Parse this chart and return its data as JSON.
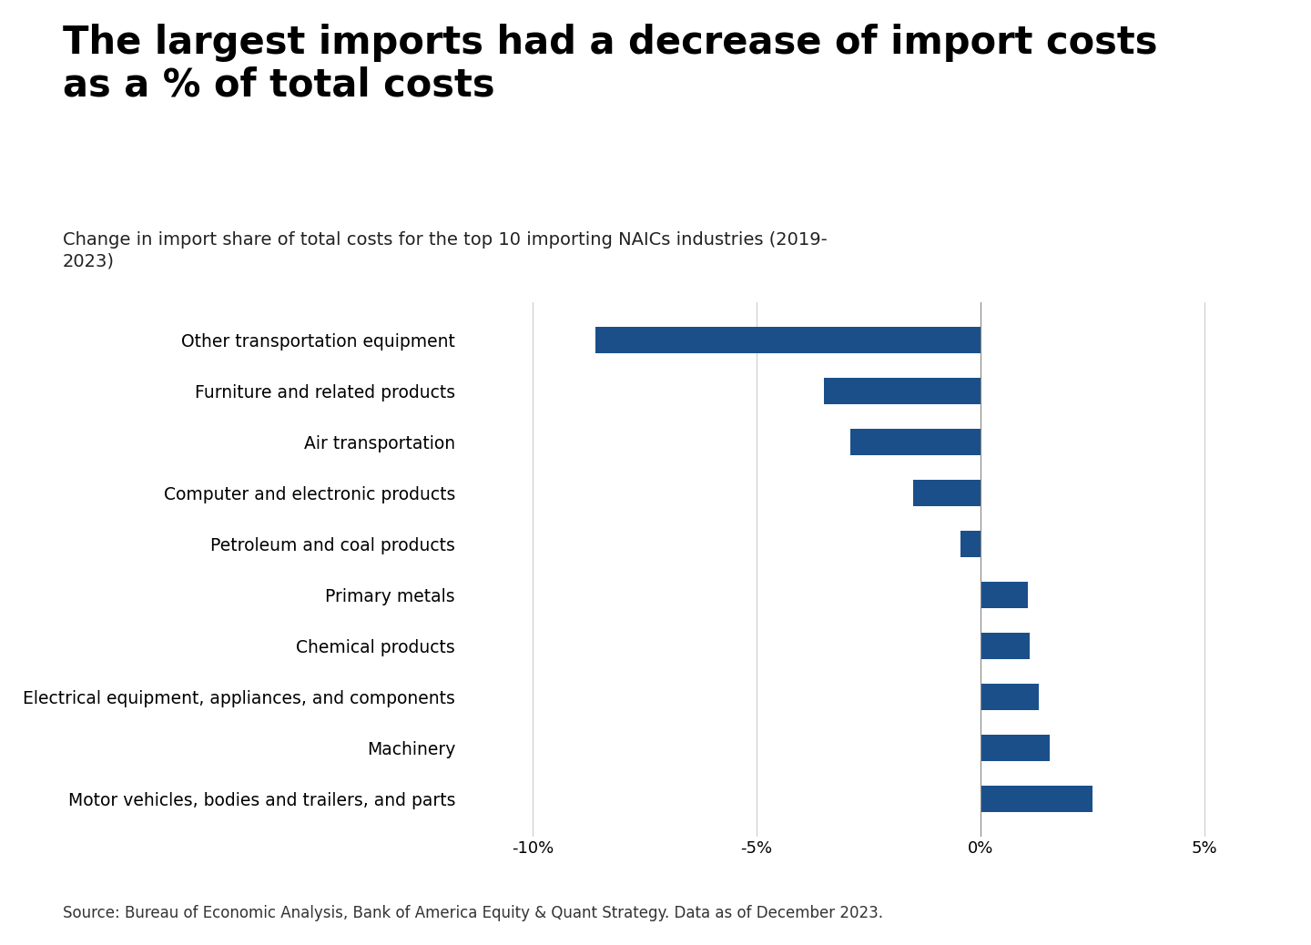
{
  "title": "The largest imports had a decrease of import costs\nas a % of total costs",
  "subtitle": "Change in import share of total costs for the top 10 importing NAICs industries (2019-\n2023)",
  "categories": [
    "Motor vehicles, bodies and trailers, and parts",
    "Machinery",
    "Electrical equipment, appliances, and components",
    "Chemical products",
    "Primary metals",
    "Petroleum and coal products",
    "Computer and electronic products",
    "Air transportation",
    "Furniture and related products",
    "Other transportation equipment"
  ],
  "values": [
    2.5,
    1.55,
    1.3,
    1.1,
    1.05,
    -0.45,
    -1.5,
    -2.9,
    -3.5,
    -8.6
  ],
  "bar_color": "#1b4f8a",
  "bg_color": "#ffffff",
  "xlim": [
    -11.5,
    6.5
  ],
  "xticks": [
    -10,
    -5,
    0,
    5
  ],
  "xticklabels": [
    "-10%",
    "-5%",
    "0%",
    "5%"
  ],
  "source_text": "Source: Bureau of Economic Analysis, Bank of America Equity & Quant Strategy. Data as of December 2023.",
  "title_fontsize": 30,
  "subtitle_fontsize": 14,
  "label_fontsize": 13.5,
  "tick_fontsize": 13,
  "source_fontsize": 12
}
